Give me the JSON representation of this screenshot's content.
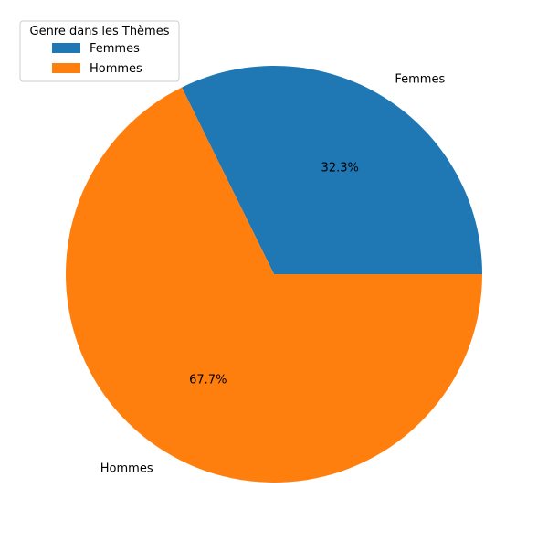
{
  "chart_data": {
    "type": "pie",
    "title": "",
    "categories": [
      "Femmes",
      "Hommes"
    ],
    "values": [
      32.3,
      67.7
    ],
    "pct_labels": [
      "32.3%",
      "67.7%"
    ],
    "colors": [
      "#1f77b4",
      "#ff7f0e"
    ],
    "start_angle_deg": 0,
    "direction": "counterclockwise",
    "legend": {
      "title": "Genre dans les Thèmes",
      "placement": "upper-left",
      "entries": [
        "Femmes",
        "Hommes"
      ]
    }
  }
}
